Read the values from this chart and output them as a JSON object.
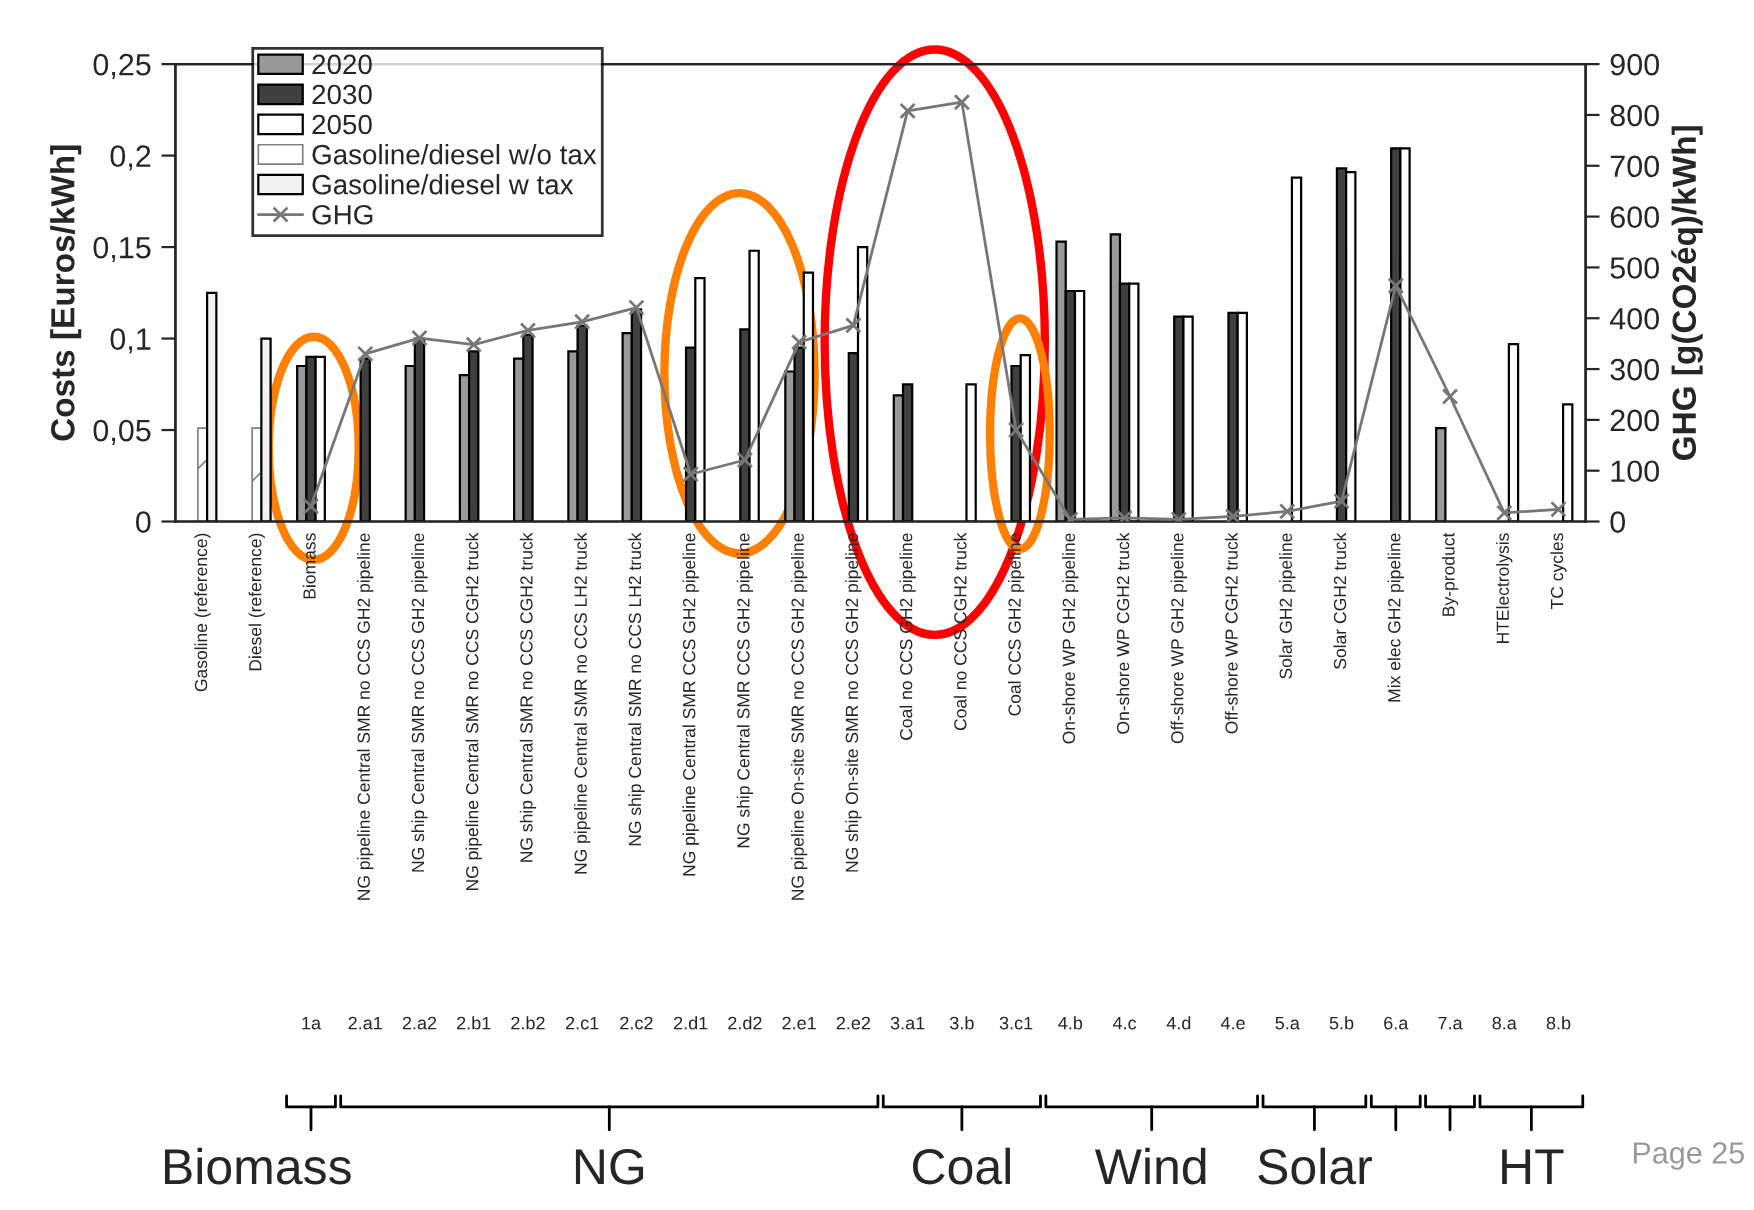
{
  "chart_data": {
    "type": "bar",
    "ylabel": "Costs [Euros/kWh]",
    "y2label": "GHG [g(CO2éq)/kWh]",
    "categories": [
      "Gasoline (reference)",
      "Diesel (reference)",
      "Biomass",
      "NG pipeline Central SMR no CCS GH2 pipeline",
      "NG ship Central SMR no CCS GH2 pipeline",
      "NG pipeline Central SMR no CCS CGH2 truck",
      "NG ship Central SMR no CCS CGH2 truck",
      "NG pipeline Central SMR no CCS LH2 truck",
      "NG ship Central SMR no CCS LH2 truck",
      "NG pipeline Central SMR CCS GH2 pipeline",
      "NG ship Central SMR CCS GH2 pipeline",
      "NG pipeline On-site SMR no CCS GH2 pipeline",
      "NG ship On-site SMR no CCS GH2 pipeline",
      "Coal no CCS GH2 pipeline",
      "Coal no CCS CGH2 truck",
      "Coal CCS GH2 pipeline",
      "On-shore WP GH2 pipeline",
      "On-shore WP CGH2 truck",
      "Off-shore WP GH2 pipeline",
      "Off-shore WP CGH2 truck",
      "Solar GH2 pipeline",
      "Solar CGH2 truck",
      "Mix elec GH2 pipeline",
      "By-product",
      "HTElectrolysis",
      "TC cycles"
    ],
    "series": [
      {
        "name": "2020",
        "color": "#999999",
        "values": [
          null,
          null,
          0.085,
          null,
          0.085,
          0.08,
          0.089,
          0.093,
          0.103,
          null,
          null,
          0.082,
          null,
          0.069,
          null,
          null,
          0.153,
          0.157,
          null,
          null,
          null,
          null,
          null,
          0.051,
          null,
          null
        ]
      },
      {
        "name": "2030",
        "color": "#404040",
        "values": [
          null,
          null,
          0.09,
          0.089,
          0.1,
          0.093,
          0.102,
          0.107,
          0.116,
          0.095,
          0.105,
          0.095,
          0.092,
          0.075,
          null,
          0.085,
          0.126,
          0.13,
          0.112,
          0.114,
          null,
          0.193,
          0.204,
          null,
          null,
          null
        ]
      },
      {
        "name": "2050",
        "color": "#ffffff",
        "values": [
          null,
          null,
          0.09,
          null,
          null,
          null,
          null,
          null,
          null,
          0.133,
          0.148,
          0.136,
          0.15,
          null,
          0.075,
          0.091,
          0.126,
          0.13,
          0.112,
          0.114,
          0.188,
          0.191,
          0.204,
          null,
          0.097,
          0.064
        ]
      },
      {
        "name": "Gasoline/diesel w/o tax",
        "color": "#808080",
        "values": [
          0.051,
          0.051,
          null,
          null,
          null,
          null,
          null,
          null,
          null,
          null,
          null,
          null,
          null,
          null,
          null,
          null,
          null,
          null,
          null,
          null,
          null,
          null,
          null,
          null,
          null,
          null
        ]
      },
      {
        "name": "Gasoline/diesel w tax",
        "color": "#f2f2f2",
        "values": [
          0.125,
          0.1,
          null,
          null,
          null,
          null,
          null,
          null,
          null,
          null,
          null,
          null,
          null,
          null,
          null,
          null,
          null,
          null,
          null,
          null,
          null,
          null,
          null,
          null,
          null,
          null
        ]
      },
      {
        "name": "GHG",
        "type": "line",
        "axis": "y2",
        "color": "#777777",
        "marker": "cross",
        "line_style": "solid",
        "values": [
          null,
          null,
          30,
          330,
          361,
          348,
          376,
          393,
          421,
          93,
          121,
          353,
          386,
          808,
          825,
          180,
          4,
          7,
          4,
          10,
          20,
          40,
          464,
          246,
          17,
          24
        ]
      }
    ],
    "ylim": [
      0,
      0.25
    ],
    "yticks": [
      0,
      {
        "value": 0.05,
        "label": "0,05"
      },
      {
        "value": 0.1,
        "label": "0,1"
      },
      {
        "value": 0.15,
        "label": "0,15"
      },
      {
        "value": 0.2,
        "label": "0,2"
      },
      {
        "value": 0.25,
        "label": "0,25"
      }
    ],
    "y2lim": [
      0,
      900
    ],
    "y2ticks": [
      0,
      100,
      200,
      300,
      400,
      500,
      600,
      700,
      800,
      900
    ],
    "legend": "top left",
    "grid": false,
    "annotations": [
      "1a",
      "2.a1",
      "2.a2",
      "2.b1",
      "2.b2",
      "2.c1",
      "2.c2",
      "2.d1",
      "2.d2",
      "2.e1",
      "2.e2",
      "3.a1",
      "3.b",
      "3.c1",
      "4.b",
      "4.c",
      "4.d",
      "4.e",
      "5.a",
      "5.b",
      "6.a",
      "7.a",
      "8.a",
      "8.b",
      "Biomass",
      "NG",
      "Coal",
      "Wind",
      "Solar",
      "HT",
      "Page 25"
    ]
  }
}
